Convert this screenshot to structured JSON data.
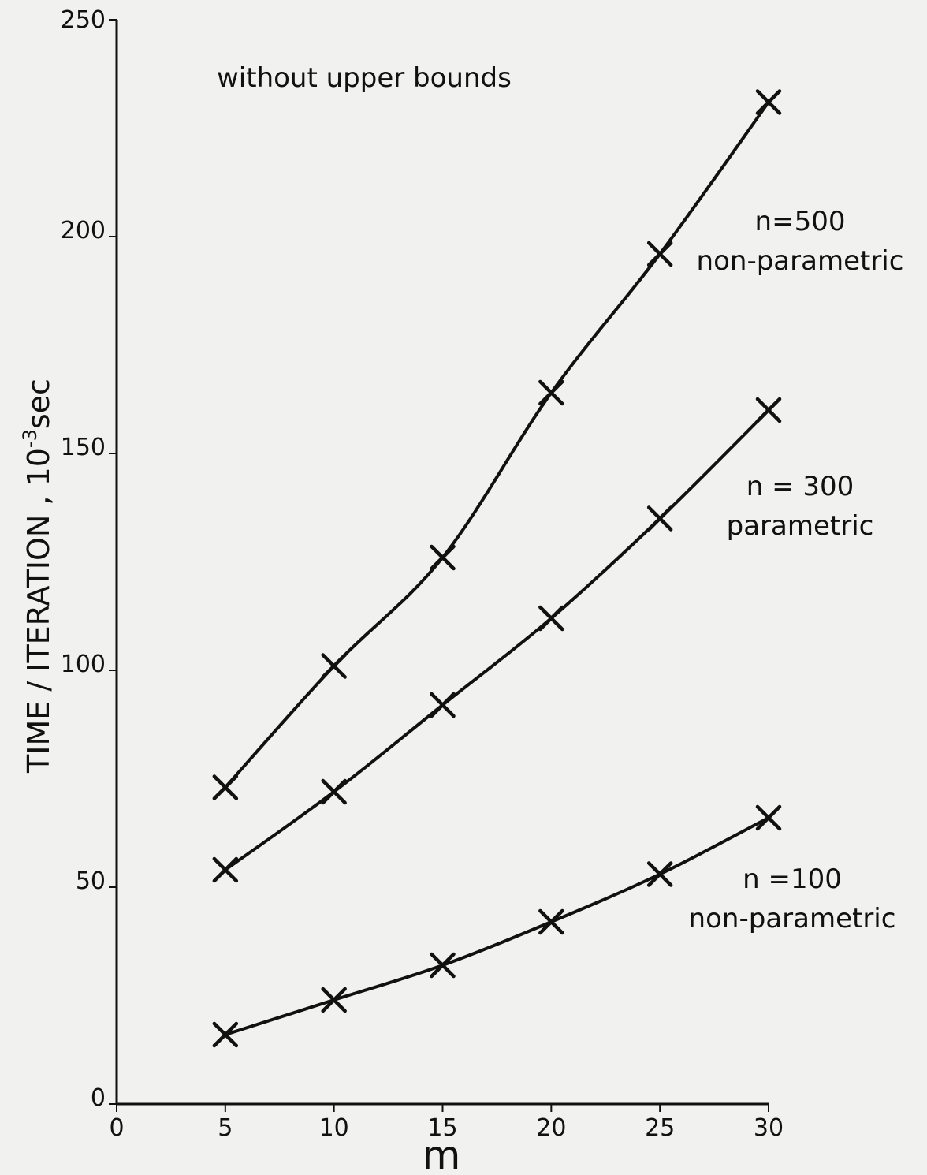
{
  "chart_data": {
    "type": "line",
    "title": "",
    "annotation": "without upper bounds",
    "xlabel": "m",
    "ylabel": "TIME / ITERATION , 10",
    "ylabel_exponent": "-3",
    "ylabel_unit": "sec",
    "xlim": [
      0,
      30
    ],
    "ylim": [
      0,
      250
    ],
    "x_ticks": [
      0,
      5,
      10,
      15,
      20,
      25,
      30
    ],
    "y_ticks": [
      0,
      50,
      100,
      150,
      200,
      250
    ],
    "grid": false,
    "legend": "none",
    "x": [
      5,
      10,
      15,
      20,
      25,
      30
    ],
    "series": [
      {
        "label_lines": [
          "n=500",
          "non-parametric"
        ],
        "values": [
          73,
          101,
          126,
          164,
          196,
          231
        ]
      },
      {
        "label_lines": [
          "n = 300",
          "parametric"
        ],
        "values": [
          54,
          72,
          92,
          112,
          135,
          160
        ]
      },
      {
        "label_lines": [
          "n =100",
          "non-parametric"
        ],
        "values": [
          16,
          24,
          32,
          42,
          53,
          66
        ]
      }
    ]
  }
}
